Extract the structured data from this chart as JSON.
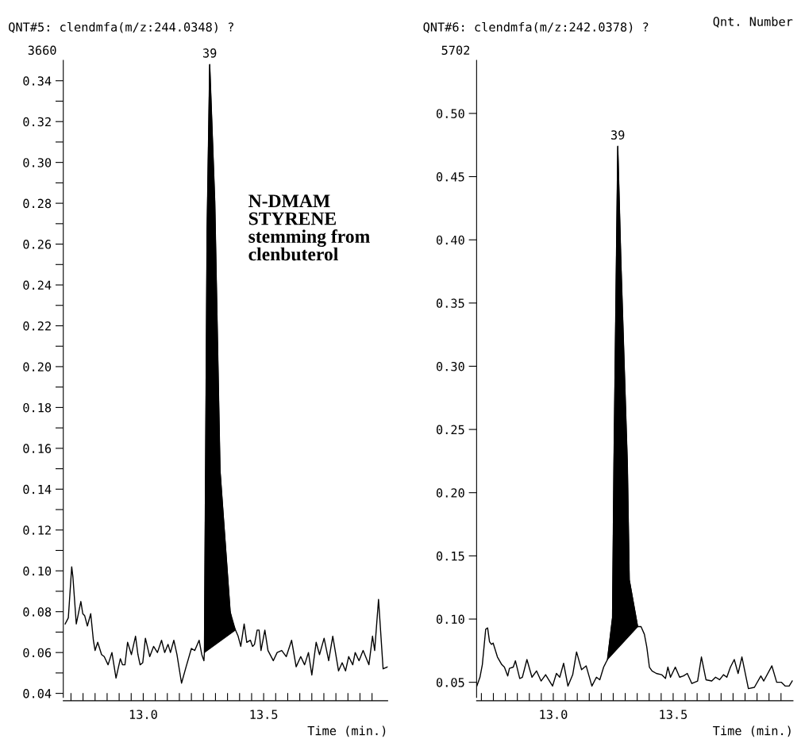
{
  "chart_data": [
    {
      "type": "line",
      "title": "QNT#5: clendmfa(m/z:244.0348) ?",
      "xlabel": "Time (min.)",
      "xlim": [
        12.668,
        14.015
      ],
      "ylim": [
        0.038,
        0.35
      ],
      "xticks": [
        {
          "value": 12.7,
          "label": null
        },
        {
          "value": 12.75,
          "label": null
        },
        {
          "value": 12.8,
          "label": null
        },
        {
          "value": 12.85,
          "label": null
        },
        {
          "value": 12.9,
          "label": null
        },
        {
          "value": 12.95,
          "label": null
        },
        {
          "value": 13.0,
          "label": "13.0"
        },
        {
          "value": 13.05,
          "label": null
        },
        {
          "value": 13.1,
          "label": null
        },
        {
          "value": 13.15,
          "label": null
        },
        {
          "value": 13.2,
          "label": null
        },
        {
          "value": 13.25,
          "label": null
        },
        {
          "value": 13.3,
          "label": null
        },
        {
          "value": 13.35,
          "label": null
        },
        {
          "value": 13.4,
          "label": null
        },
        {
          "value": 13.45,
          "label": null
        },
        {
          "value": 13.5,
          "label": "13.5"
        },
        {
          "value": 13.55,
          "label": null
        },
        {
          "value": 13.6,
          "label": null
        },
        {
          "value": 13.65,
          "label": null
        },
        {
          "value": 13.7,
          "label": null
        },
        {
          "value": 13.75,
          "label": null
        },
        {
          "value": 13.8,
          "label": null
        },
        {
          "value": 13.85,
          "label": null
        },
        {
          "value": 13.9,
          "label": null
        },
        {
          "value": 13.95,
          "label": null
        }
      ],
      "yticks": [
        {
          "value": 0.04,
          "label": "0.04"
        },
        {
          "value": 0.05,
          "label": null
        },
        {
          "value": 0.06,
          "label": "0.06"
        },
        {
          "value": 0.07,
          "label": null
        },
        {
          "value": 0.08,
          "label": "0.08"
        },
        {
          "value": 0.09,
          "label": null
        },
        {
          "value": 0.1,
          "label": "0.10"
        },
        {
          "value": 0.11,
          "label": null
        },
        {
          "value": 0.12,
          "label": "0.12"
        },
        {
          "value": 0.13,
          "label": null
        },
        {
          "value": 0.14,
          "label": "0.14"
        },
        {
          "value": 0.15,
          "label": null
        },
        {
          "value": 0.16,
          "label": "0.16"
        },
        {
          "value": 0.17,
          "label": null
        },
        {
          "value": 0.18,
          "label": "0.18"
        },
        {
          "value": 0.19,
          "label": null
        },
        {
          "value": 0.2,
          "label": "0.20"
        },
        {
          "value": 0.21,
          "label": null
        },
        {
          "value": 0.22,
          "label": "0.22"
        },
        {
          "value": 0.23,
          "label": null
        },
        {
          "value": 0.24,
          "label": "0.24"
        },
        {
          "value": 0.25,
          "label": null
        },
        {
          "value": 0.26,
          "label": "0.26"
        },
        {
          "value": 0.27,
          "label": null
        },
        {
          "value": 0.28,
          "label": "0.28"
        },
        {
          "value": 0.29,
          "label": null
        },
        {
          "value": 0.3,
          "label": "0.30"
        },
        {
          "value": 0.31,
          "label": null
        },
        {
          "value": 0.32,
          "label": "0.32"
        },
        {
          "value": 0.33,
          "label": null
        },
        {
          "value": 0.34,
          "label": "0.34"
        }
      ],
      "subtitle": "3660",
      "series": [
        {
          "color": "#000000",
          "x": [
            12.676,
            12.689,
            12.703,
            12.708,
            12.722,
            12.741,
            12.749,
            12.757,
            12.768,
            12.782,
            12.793,
            12.8,
            12.811,
            12.827,
            12.838,
            12.854,
            12.87,
            12.887,
            12.905,
            12.914,
            12.924,
            12.935,
            12.951,
            12.968,
            12.978,
            12.987,
            12.998,
            13.009,
            13.027,
            13.043,
            13.059,
            13.076,
            13.089,
            13.103,
            13.113,
            13.127,
            13.14,
            13.159,
            13.178,
            13.2,
            13.214,
            13.232,
            13.243,
            13.252,
            13.254,
            13.265,
            13.276,
            13.297,
            13.319,
            13.361,
            13.37,
            13.383,
            13.394,
            13.405,
            13.419,
            13.43,
            13.445,
            13.454,
            13.462,
            13.473,
            13.481,
            13.489,
            13.505,
            13.518,
            13.54,
            13.556,
            13.575,
            13.594,
            13.616,
            13.635,
            13.654,
            13.67,
            13.686,
            13.7,
            13.718,
            13.732,
            13.751,
            13.77,
            13.787,
            13.811,
            13.826,
            13.84,
            13.853,
            13.87,
            13.88,
            13.896,
            13.913,
            13.937,
            13.952,
            13.961,
            13.977,
            13.996,
            14.015
          ],
          "values": [
            0.074,
            0.077,
            0.102,
            0.097,
            0.074,
            0.085,
            0.079,
            0.078,
            0.073,
            0.079,
            0.066,
            0.061,
            0.065,
            0.059,
            0.058,
            0.054,
            0.06,
            0.0475,
            0.057,
            0.054,
            0.054,
            0.065,
            0.059,
            0.068,
            0.059,
            0.054,
            0.055,
            0.067,
            0.058,
            0.063,
            0.06,
            0.066,
            0.06,
            0.064,
            0.06,
            0.066,
            0.059,
            0.045,
            0.053,
            0.062,
            0.061,
            0.066,
            0.059,
            0.056,
            0.06,
            0.266,
            0.348,
            0.281,
            0.149,
            0.08,
            0.074,
            0.071,
            0.068,
            0.063,
            0.074,
            0.065,
            0.066,
            0.063,
            0.064,
            0.071,
            0.071,
            0.061,
            0.071,
            0.061,
            0.056,
            0.06,
            0.061,
            0.058,
            0.066,
            0.053,
            0.058,
            0.054,
            0.06,
            0.049,
            0.065,
            0.059,
            0.067,
            0.056,
            0.068,
            0.051,
            0.055,
            0.051,
            0.058,
            0.054,
            0.06,
            0.056,
            0.061,
            0.054,
            0.068,
            0.061,
            0.086,
            0.052,
            0.053
          ]
        },
        {
          "type": "area",
          "color": "#000000",
          "x": [
            13.254,
            13.265,
            13.276,
            13.297,
            13.319,
            13.361,
            13.383
          ],
          "values": [
            0.06,
            0.266,
            0.348,
            0.281,
            0.149,
            0.08,
            0.071
          ]
        }
      ],
      "annotations": [
        {
          "text": "39",
          "x": 13.276,
          "y": 0.348
        },
        "N-DMAM\nSTYRENE\nstemming from\nclenbuterol"
      ]
    },
    {
      "type": "line",
      "title": "QNT#6: clendmfa(m/z:242.0378) ?",
      "xlabel": "Time (min.)",
      "xlim": [
        12.68,
        14.0
      ],
      "ylim": [
        0.038,
        0.542
      ],
      "xticks": [
        {
          "value": 12.7,
          "label": null
        },
        {
          "value": 12.75,
          "label": null
        },
        {
          "value": 12.8,
          "label": null
        },
        {
          "value": 12.85,
          "label": null
        },
        {
          "value": 12.9,
          "label": null
        },
        {
          "value": 12.95,
          "label": null
        },
        {
          "value": 13.0,
          "label": "13.0"
        },
        {
          "value": 13.05,
          "label": null
        },
        {
          "value": 13.1,
          "label": null
        },
        {
          "value": 13.15,
          "label": null
        },
        {
          "value": 13.2,
          "label": null
        },
        {
          "value": 13.25,
          "label": null
        },
        {
          "value": 13.3,
          "label": null
        },
        {
          "value": 13.35,
          "label": null
        },
        {
          "value": 13.4,
          "label": null
        },
        {
          "value": 13.45,
          "label": null
        },
        {
          "value": 13.5,
          "label": "13.5"
        },
        {
          "value": 13.55,
          "label": null
        },
        {
          "value": 13.6,
          "label": null
        },
        {
          "value": 13.65,
          "label": null
        },
        {
          "value": 13.7,
          "label": null
        },
        {
          "value": 13.75,
          "label": null
        },
        {
          "value": 13.8,
          "label": null
        },
        {
          "value": 13.85,
          "label": null
        },
        {
          "value": 13.9,
          "label": null
        },
        {
          "value": 13.95,
          "label": null
        }
      ],
      "yticks": [
        {
          "value": 0.05,
          "label": "0.05"
        },
        {
          "value": 0.1,
          "label": "0.10"
        },
        {
          "value": 0.15,
          "label": "0.15"
        },
        {
          "value": 0.2,
          "label": "0.20"
        },
        {
          "value": 0.25,
          "label": "0.25"
        },
        {
          "value": 0.3,
          "label": "0.30"
        },
        {
          "value": 0.35,
          "label": "0.35"
        },
        {
          "value": 0.4,
          "label": "0.40"
        },
        {
          "value": 0.45,
          "label": "0.45"
        },
        {
          "value": 0.5,
          "label": "0.50"
        }
      ],
      "subtitle": "5702",
      "series": [
        {
          "color": "#000000",
          "x": [
            12.681,
            12.694,
            12.704,
            12.718,
            12.726,
            12.734,
            12.742,
            12.749,
            12.767,
            12.785,
            12.796,
            12.81,
            12.817,
            12.833,
            12.842,
            12.86,
            12.871,
            12.89,
            12.911,
            12.93,
            12.949,
            12.968,
            12.997,
            13.013,
            13.027,
            13.043,
            13.061,
            13.081,
            13.097,
            13.118,
            13.137,
            13.161,
            13.18,
            13.194,
            13.21,
            13.226,
            13.247,
            13.253,
            13.269,
            13.282,
            13.309,
            13.317,
            13.352,
            13.366,
            13.38,
            13.39,
            13.401,
            13.412,
            13.43,
            13.452,
            13.468,
            13.478,
            13.489,
            13.509,
            13.527,
            13.543,
            13.559,
            13.578,
            13.602,
            13.618,
            13.637,
            13.661,
            13.677,
            13.694,
            13.71,
            13.724,
            13.739,
            13.755,
            13.771,
            13.787,
            13.814,
            13.839,
            13.866,
            13.878,
            13.912,
            13.932,
            13.952,
            13.968,
            13.984,
            13.997
          ],
          "values": [
            0.047,
            0.054,
            0.064,
            0.092,
            0.093,
            0.082,
            0.08,
            0.081,
            0.07,
            0.064,
            0.062,
            0.055,
            0.061,
            0.062,
            0.067,
            0.053,
            0.054,
            0.068,
            0.054,
            0.059,
            0.051,
            0.056,
            0.047,
            0.057,
            0.054,
            0.065,
            0.047,
            0.056,
            0.074,
            0.06,
            0.063,
            0.047,
            0.054,
            0.052,
            0.062,
            0.068,
            0.101,
            0.223,
            0.474,
            0.383,
            0.223,
            0.131,
            0.094,
            0.094,
            0.088,
            0.078,
            0.062,
            0.059,
            0.057,
            0.056,
            0.053,
            0.062,
            0.054,
            0.062,
            0.054,
            0.055,
            0.057,
            0.049,
            0.051,
            0.07,
            0.052,
            0.051,
            0.054,
            0.052,
            0.056,
            0.054,
            0.062,
            0.068,
            0.057,
            0.07,
            0.045,
            0.046,
            0.055,
            0.051,
            0.063,
            0.05,
            0.05,
            0.047,
            0.047,
            0.051
          ]
        },
        {
          "type": "area",
          "color": "#000000",
          "x": [
            13.226,
            13.247,
            13.253,
            13.269,
            13.282,
            13.309,
            13.317,
            13.352
          ],
          "values": [
            0.068,
            0.101,
            0.223,
            0.474,
            0.383,
            0.223,
            0.131,
            0.094
          ]
        }
      ],
      "annotations": [
        {
          "text": "39",
          "x": 13.269,
          "y": 0.474
        },
        "Qnt. Number"
      ]
    }
  ]
}
